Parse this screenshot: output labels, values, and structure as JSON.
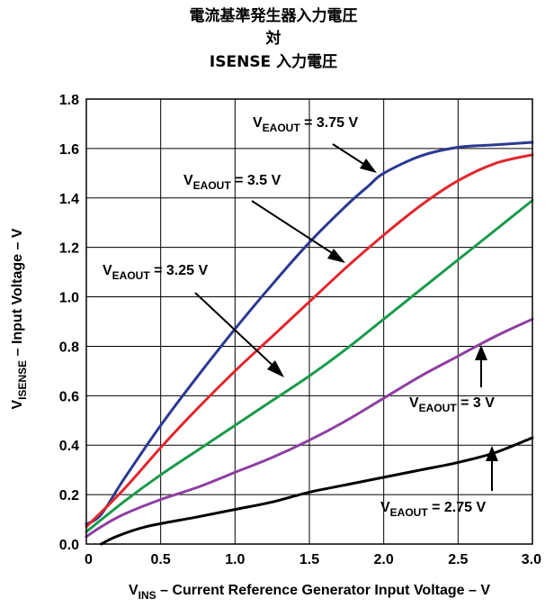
{
  "chart_data": {
    "type": "line",
    "title_lines": [
      "電流基準発生器入力電圧",
      "対",
      "ISENSE 入力電圧"
    ],
    "xlabel": {
      "main": "V",
      "sub": "INS",
      "rest": " – Current Reference Generator Input Voltage – V"
    },
    "ylabel": {
      "main": "V",
      "sub": "ISENSE",
      "rest": " – Input Voltage – V"
    },
    "xlim": [
      0,
      3
    ],
    "ylim": [
      0,
      1.8
    ],
    "x_ticks": [
      {
        "v": 0,
        "label": "0"
      },
      {
        "v": 0.5,
        "label": "0.5"
      },
      {
        "v": 1,
        "label": "1.0"
      },
      {
        "v": 1.5,
        "label": "1.5"
      },
      {
        "v": 2,
        "label": "2.0"
      },
      {
        "v": 2.5,
        "label": "2.5"
      },
      {
        "v": 3,
        "label": "3.0"
      }
    ],
    "y_ticks": [
      {
        "v": 0,
        "label": "0.0"
      },
      {
        "v": 0.2,
        "label": "0.2"
      },
      {
        "v": 0.4,
        "label": "0.4"
      },
      {
        "v": 0.6,
        "label": "0.6"
      },
      {
        "v": 0.8,
        "label": "0.8"
      },
      {
        "v": 1.0,
        "label": "1.0"
      },
      {
        "v": 1.2,
        "label": "1.2"
      },
      {
        "v": 1.4,
        "label": "1.4"
      },
      {
        "v": 1.6,
        "label": "1.6"
      },
      {
        "v": 1.8,
        "label": "1.8"
      }
    ],
    "grid": true,
    "series": [
      {
        "id": "vea-375",
        "color": "#2b3990",
        "points": [
          [
            0,
            0.08
          ],
          [
            0.1,
            0.12
          ],
          [
            0.25,
            0.26
          ],
          [
            0.5,
            0.48
          ],
          [
            0.75,
            0.68
          ],
          [
            1.0,
            0.87
          ],
          [
            1.25,
            1.05
          ],
          [
            1.5,
            1.22
          ],
          [
            1.75,
            1.37
          ],
          [
            1.9,
            1.45
          ],
          [
            2.0,
            1.5
          ],
          [
            2.25,
            1.57
          ],
          [
            2.5,
            1.605
          ],
          [
            2.75,
            1.615
          ],
          [
            3.0,
            1.625
          ]
        ],
        "label": {
          "main": "V",
          "sub": "EAOUT",
          "rest": " = 3.75 V"
        }
      },
      {
        "id": "vea-35",
        "color": "#e0282e",
        "points": [
          [
            0,
            0.07
          ],
          [
            0.25,
            0.22
          ],
          [
            0.5,
            0.39
          ],
          [
            0.75,
            0.55
          ],
          [
            1.0,
            0.7
          ],
          [
            1.25,
            0.84
          ],
          [
            1.5,
            0.98
          ],
          [
            1.75,
            1.12
          ],
          [
            2.0,
            1.25
          ],
          [
            2.25,
            1.37
          ],
          [
            2.5,
            1.47
          ],
          [
            2.75,
            1.54
          ],
          [
            3.0,
            1.575
          ]
        ],
        "label": {
          "main": "V",
          "sub": "EAOUT",
          "rest": " = 3.5 V"
        }
      },
      {
        "id": "vea-325",
        "color": "#1a9a4a",
        "points": [
          [
            0,
            0.05
          ],
          [
            0.25,
            0.17
          ],
          [
            0.5,
            0.28
          ],
          [
            0.75,
            0.38
          ],
          [
            1.0,
            0.48
          ],
          [
            1.25,
            0.58
          ],
          [
            1.5,
            0.68
          ],
          [
            1.75,
            0.79
          ],
          [
            2.0,
            0.91
          ],
          [
            2.25,
            1.03
          ],
          [
            2.5,
            1.15
          ],
          [
            2.75,
            1.27
          ],
          [
            3.0,
            1.39
          ]
        ],
        "label": {
          "main": "V",
          "sub": "EAOUT",
          "rest": " = 3.25 V"
        }
      },
      {
        "id": "vea-3",
        "color": "#8e3fa0",
        "points": [
          [
            0,
            0.03
          ],
          [
            0.1,
            0.07
          ],
          [
            0.25,
            0.12
          ],
          [
            0.5,
            0.18
          ],
          [
            0.75,
            0.23
          ],
          [
            1.0,
            0.29
          ],
          [
            1.25,
            0.35
          ],
          [
            1.5,
            0.42
          ],
          [
            1.75,
            0.5
          ],
          [
            2.0,
            0.59
          ],
          [
            2.25,
            0.68
          ],
          [
            2.5,
            0.76
          ],
          [
            2.75,
            0.84
          ],
          [
            3.0,
            0.91
          ]
        ],
        "label": {
          "main": "V",
          "sub": "EAOUT",
          "rest": " = 3 V"
        }
      },
      {
        "id": "vea-275",
        "color": "#000000",
        "points": [
          [
            0.1,
            0.0
          ],
          [
            0.2,
            0.03
          ],
          [
            0.4,
            0.07
          ],
          [
            0.75,
            0.11
          ],
          [
            1.0,
            0.14
          ],
          [
            1.25,
            0.17
          ],
          [
            1.5,
            0.21
          ],
          [
            1.75,
            0.24
          ],
          [
            2.0,
            0.27
          ],
          [
            2.25,
            0.3
          ],
          [
            2.5,
            0.33
          ],
          [
            2.75,
            0.37
          ],
          [
            3.0,
            0.43
          ]
        ],
        "label": {
          "main": "V",
          "sub": "EAOUT",
          "rest": " = 2.75 V"
        }
      }
    ]
  }
}
